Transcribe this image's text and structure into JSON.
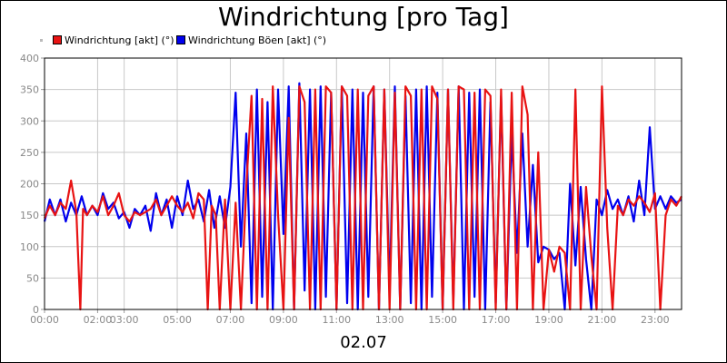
{
  "chart_data": {
    "type": "line",
    "title": "Windrichtung [pro Tag]",
    "xlabel": "02.07",
    "ylabel": "",
    "ylim": [
      0,
      400
    ],
    "xlim": [
      "00:00",
      "24:00"
    ],
    "y_ticks": [
      "0",
      "50",
      "100",
      "150",
      "200",
      "250",
      "300",
      "350",
      "400"
    ],
    "x_ticks": [
      "00:00",
      "02:00",
      "03:00",
      "05:00",
      "07:00",
      "09:00",
      "11:00",
      "13:00",
      "15:00",
      "17:00",
      "19:00",
      "21:00",
      "23:00"
    ],
    "x_tick_positions_hours": [
      0,
      2,
      3,
      5,
      7,
      9,
      11,
      13,
      15,
      17,
      19,
      21,
      23
    ],
    "grid": true,
    "legend_position": "top-left",
    "series": [
      {
        "name": "Windrichtung [akt] (°)",
        "color": "#e81313",
        "x_hours": [
          0.0,
          0.2,
          0.4,
          0.6,
          0.8,
          1.0,
          1.2,
          1.35,
          1.45,
          1.6,
          1.8,
          2.0,
          2.2,
          2.4,
          2.6,
          2.8,
          3.0,
          3.2,
          3.4,
          3.6,
          3.8,
          4.0,
          4.2,
          4.4,
          4.6,
          4.8,
          5.0,
          5.2,
          5.4,
          5.6,
          5.8,
          6.0,
          6.15,
          6.3,
          6.45,
          6.6,
          6.8,
          7.0,
          7.2,
          7.4,
          7.6,
          7.8,
          8.0,
          8.2,
          8.4,
          8.6,
          8.8,
          9.0,
          9.2,
          9.4,
          9.6,
          9.8,
          10.0,
          10.2,
          10.4,
          10.6,
          10.8,
          11.0,
          11.2,
          11.4,
          11.6,
          11.8,
          12.0,
          12.2,
          12.4,
          12.6,
          12.8,
          13.0,
          13.2,
          13.4,
          13.6,
          13.8,
          14.0,
          14.2,
          14.4,
          14.6,
          14.8,
          15.0,
          15.2,
          15.4,
          15.6,
          15.8,
          16.0,
          16.2,
          16.4,
          16.6,
          16.8,
          17.0,
          17.2,
          17.4,
          17.6,
          17.8,
          18.0,
          18.2,
          18.4,
          18.6,
          18.8,
          19.0,
          19.2,
          19.4,
          19.6,
          19.8,
          20.0,
          20.2,
          20.4,
          20.6,
          20.8,
          21.0,
          21.2,
          21.4,
          21.6,
          21.8,
          22.0,
          22.2,
          22.4,
          22.6,
          22.8,
          23.0,
          23.2,
          23.4,
          23.6,
          23.8,
          24.0
        ],
        "values": [
          145,
          165,
          150,
          170,
          160,
          205,
          155,
          0,
          160,
          150,
          165,
          155,
          180,
          150,
          165,
          185,
          150,
          140,
          155,
          150,
          155,
          160,
          175,
          150,
          165,
          180,
          165,
          155,
          170,
          145,
          185,
          175,
          0,
          165,
          150,
          0,
          175,
          0,
          170,
          0,
          195,
          340,
          0,
          335,
          0,
          355,
          150,
          0,
          305,
          0,
          355,
          330,
          0,
          350,
          0,
          355,
          345,
          0,
          355,
          340,
          0,
          350,
          0,
          340,
          355,
          0,
          350,
          0,
          345,
          0,
          355,
          340,
          0,
          350,
          0,
          355,
          335,
          0,
          350,
          0,
          355,
          350,
          0,
          345,
          0,
          350,
          340,
          0,
          350,
          0,
          345,
          0,
          355,
          310,
          0,
          250,
          0,
          95,
          60,
          100,
          90,
          0,
          350,
          0,
          195,
          85,
          0,
          355,
          130,
          0,
          165,
          150,
          175,
          165,
          180,
          170,
          155,
          185,
          0,
          150,
          175,
          165,
          180
        ]
      },
      {
        "name": "Windrichtung Böen [akt] (°)",
        "color": "#0000ee",
        "x_hours": [
          0.0,
          0.2,
          0.4,
          0.6,
          0.8,
          1.0,
          1.2,
          1.4,
          1.6,
          1.8,
          2.0,
          2.2,
          2.4,
          2.6,
          2.8,
          3.0,
          3.2,
          3.4,
          3.6,
          3.8,
          4.0,
          4.2,
          4.4,
          4.6,
          4.8,
          5.0,
          5.2,
          5.4,
          5.6,
          5.8,
          6.0,
          6.2,
          6.4,
          6.6,
          6.8,
          7.0,
          7.2,
          7.4,
          7.6,
          7.8,
          8.0,
          8.2,
          8.4,
          8.6,
          8.8,
          9.0,
          9.2,
          9.4,
          9.6,
          9.8,
          10.0,
          10.2,
          10.4,
          10.6,
          10.8,
          11.0,
          11.2,
          11.4,
          11.6,
          11.8,
          12.0,
          12.2,
          12.4,
          12.6,
          12.8,
          13.0,
          13.2,
          13.4,
          13.6,
          13.8,
          14.0,
          14.2,
          14.4,
          14.6,
          14.8,
          15.0,
          15.2,
          15.4,
          15.6,
          15.8,
          16.0,
          16.2,
          16.4,
          16.6,
          16.8,
          17.0,
          17.2,
          17.4,
          17.6,
          17.8,
          18.0,
          18.2,
          18.4,
          18.6,
          18.8,
          19.0,
          19.2,
          19.4,
          19.6,
          19.8,
          20.0,
          20.2,
          20.4,
          20.6,
          20.8,
          21.0,
          21.2,
          21.4,
          21.6,
          21.8,
          22.0,
          22.2,
          22.4,
          22.6,
          22.8,
          23.0,
          23.2,
          23.4,
          23.6,
          23.8,
          24.0
        ],
        "values": [
          140,
          175,
          150,
          175,
          140,
          170,
          150,
          180,
          150,
          165,
          150,
          185,
          160,
          170,
          145,
          155,
          130,
          160,
          150,
          165,
          125,
          185,
          150,
          175,
          130,
          180,
          150,
          205,
          160,
          175,
          140,
          190,
          130,
          180,
          130,
          195,
          345,
          100,
          280,
          10,
          350,
          20,
          330,
          0,
          350,
          120,
          355,
          0,
          360,
          30,
          350,
          0,
          355,
          20,
          345,
          0,
          355,
          10,
          350,
          0,
          345,
          20,
          355,
          0,
          350,
          30,
          355,
          0,
          340,
          10,
          350,
          0,
          355,
          20,
          345,
          0,
          350,
          10,
          355,
          0,
          345,
          20,
          350,
          0,
          330,
          10,
          340,
          0,
          280,
          90,
          280,
          100,
          230,
          75,
          100,
          95,
          80,
          90,
          0,
          200,
          70,
          195,
          80,
          0,
          175,
          150,
          190,
          160,
          175,
          150,
          180,
          140,
          205,
          150,
          290,
          160,
          180,
          160,
          180,
          170,
          175
        ]
      }
    ]
  }
}
